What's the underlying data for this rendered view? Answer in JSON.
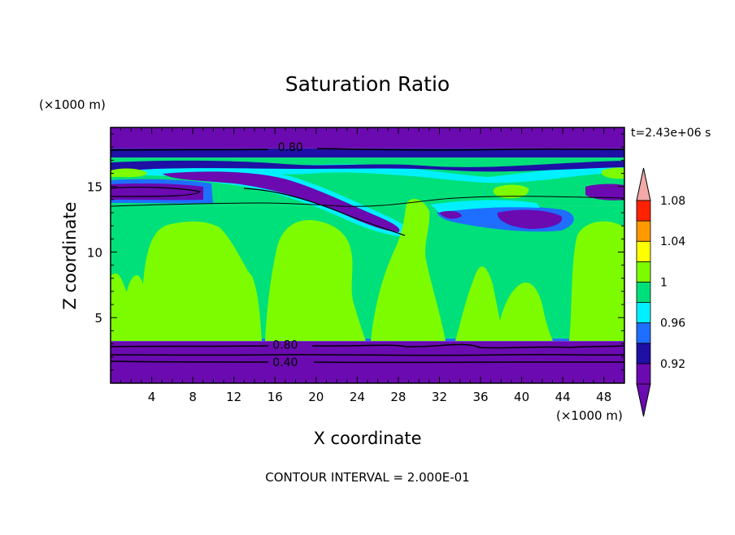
{
  "chart_data": {
    "type": "heatmap",
    "title": "Saturation Ratio",
    "xlabel": "X coordinate",
    "ylabel": "Z coordinate",
    "x_unit": "(×1000 m)",
    "y_unit": "(×1000 m)",
    "time_label": "t=2.43e+06 s",
    "footer": "CONTOUR INTERVAL = 2.000E-01",
    "xlim": [
      0,
      50
    ],
    "ylim": [
      0,
      19.5
    ],
    "x_ticks": [
      4,
      8,
      12,
      16,
      20,
      24,
      28,
      32,
      36,
      40,
      44,
      48
    ],
    "y_ticks": [
      5,
      10,
      15
    ],
    "contour_labels": [
      {
        "text": "0.80",
        "x": 17.5,
        "y": 18.0
      },
      {
        "text": "0.80",
        "x": 17.0,
        "y": 2.95
      },
      {
        "text": "0.40",
        "x": 17.0,
        "y": 1.6
      }
    ],
    "colorbar": {
      "levels": [
        0.92,
        0.96,
        1,
        1.04,
        1.08
      ],
      "bins": [
        {
          "color": "#6a0ab0"
        },
        {
          "color": "#1e0fa5"
        },
        {
          "color": "#1e6eff"
        },
        {
          "color": "#00f0ff"
        },
        {
          "color": "#00e07a"
        },
        {
          "color": "#7dfc00"
        },
        {
          "color": "#ffff00"
        },
        {
          "color": "#ff9900"
        },
        {
          "color": "#ff2200"
        }
      ],
      "over_color": "#f4a8a8",
      "under_color": "#6a0ab0"
    },
    "field_bands": [
      {
        "zmin": 17.9,
        "zmax": 19.5,
        "color": "#6a0ab0"
      },
      {
        "zmin": 17.2,
        "zmax": 17.9,
        "color": "#1e0fa5"
      },
      {
        "zmin": 13.5,
        "zmax": 17.2,
        "color": "#00e07a"
      },
      {
        "zmin": 3.4,
        "zmax": 13.5,
        "color": "#00e07a"
      },
      {
        "zmin": 3.2,
        "zmax": 3.4,
        "color": "#1e6eff"
      },
      {
        "zmin": 0,
        "zmax": 3.2,
        "color": "#6a0ab0"
      }
    ]
  },
  "colors": {
    "deep_purple": "#6a0ab0",
    "navy": "#1e0fa5",
    "blue": "#1e6eff",
    "cyan": "#00f0ff",
    "green": "#00e07a",
    "lime": "#7dfc00"
  }
}
